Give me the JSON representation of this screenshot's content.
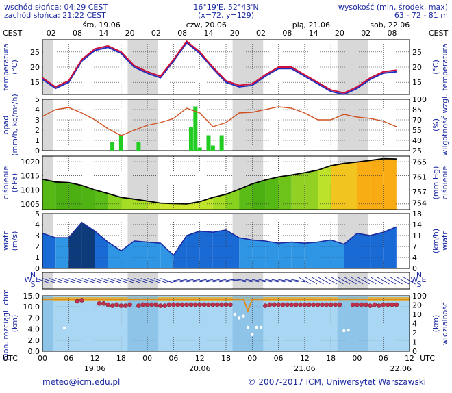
{
  "header": {
    "sunrise": "wschód słońca: 04:29 CEST",
    "sunset": "zachód słońca: 21:22 CEST",
    "coords": "16°19'E, 52°43'N",
    "grid": "(x=72,  y=129)",
    "alt_label": "wysokość (min, środek, max)",
    "alt_values": "63 - 72 - 81 m"
  },
  "top_axis": {
    "tz": "CEST",
    "hours": [
      "02",
      "08",
      "14",
      "20",
      "02",
      "08",
      "14",
      "20",
      "02",
      "08",
      "14",
      "20",
      "02",
      "08",
      "14"
    ],
    "days": [
      "śro, 19.06",
      "czw, 20.06",
      "pią, 21.06",
      "sob, 22.06"
    ]
  },
  "bottom_axis": {
    "tz": "UTC",
    "hours": [
      "00",
      "06",
      "12",
      "18",
      "00",
      "06",
      "12",
      "18",
      "00",
      "06",
      "12",
      "18",
      "00",
      "06",
      "12"
    ],
    "dates": [
      "19.06",
      "20.06",
      "21.06",
      "22.06"
    ]
  },
  "panels": {
    "temperature": {
      "left_label": "temperatura\n(°C)",
      "right_label": "(°C)\ntemperatura",
      "ticks": [
        "15",
        "20",
        "25"
      ]
    },
    "precip": {
      "left_label": "opad\n(mm/h, kg/m²/h)",
      "right_label": "(%)\nwilgotność wzgl.",
      "left_ticks": [
        "0",
        "1",
        "2",
        "3",
        "4",
        "5"
      ],
      "right_ticks": [
        "25",
        "40",
        "55",
        "70",
        "85",
        "100"
      ]
    },
    "pressure": {
      "left_label": "ciśnienie\n(hPa)",
      "right_label": "(mm Hg)\nciśnienie",
      "left_ticks": [
        "1005",
        "1010",
        "1015",
        "1020"
      ],
      "right_ticks": [
        "754",
        "757",
        "761",
        "765"
      ]
    },
    "wind": {
      "left_label": "wiatr\n(m/s)",
      "right_label": "(km/h)\nwiatr",
      "left_ticks": [
        "0",
        "1",
        "2",
        "3",
        "4",
        "5"
      ],
      "right_ticks": [
        "0",
        "4",
        "7",
        "11",
        "14",
        "18"
      ]
    },
    "winddir": {
      "left": "N",
      "right": "N",
      "w": "W",
      "e": "E",
      "s": "S"
    },
    "visibility": {
      "left_label": "pion. rozciągł. chm.\n(km)",
      "right_label": "(km)\nwidzialność",
      "left_ticks": [
        "0.0",
        "2.0",
        "4.0",
        "7.0",
        "10.0",
        "15.0"
      ],
      "right_ticks": [
        "0",
        "1",
        "2",
        "4",
        "10",
        "20",
        "100"
      ]
    }
  },
  "footer": {
    "email": "meteo@icm.edu.pl",
    "copyright": "© 2007-2017 ICM, Uniwersytet Warszawski"
  },
  "colors": {
    "temp_line": "#d0103a",
    "temp_min": "#2030c0",
    "humidity": "#d05020",
    "precip": "#22cc22",
    "pressure_line": "#000000",
    "wind_line": "#1c2aa0",
    "frame": "#1c2aa0"
  },
  "chart_data": [
    {
      "type": "line",
      "title": "temperatura",
      "ylim": [
        11,
        29
      ],
      "x_hours_utc": [
        0,
        3,
        6,
        9,
        12,
        15,
        18,
        21,
        24,
        27,
        30,
        33,
        36,
        39,
        42,
        45,
        48,
        51,
        54,
        57,
        60,
        63,
        66,
        69,
        72,
        75,
        78,
        81
      ],
      "series": [
        {
          "name": "max",
          "values": [
            16.5,
            13.5,
            15.5,
            22.5,
            26,
            27,
            25,
            20.5,
            18.5,
            17,
            22.5,
            28.5,
            25,
            20,
            15.5,
            14,
            14.5,
            17.5,
            20,
            20,
            17.5,
            15,
            12.5,
            11.5,
            13.5,
            16.5,
            18.5,
            19
          ]
        },
        {
          "name": "min",
          "values": [
            16,
            13,
            15,
            22,
            25.5,
            26.5,
            24.5,
            20,
            18,
            16.5,
            22,
            28,
            24.5,
            19.5,
            15,
            13.5,
            14,
            17,
            19.5,
            19.5,
            17,
            14.5,
            12,
            11,
            13,
            16,
            18,
            18.5
          ]
        }
      ]
    },
    {
      "type": "bar",
      "title": "opad",
      "ylim": [
        0,
        5
      ],
      "bars": [
        {
          "x": 16,
          "values": [
            0.8
          ]
        },
        {
          "x": 18,
          "values": [
            1.5
          ]
        },
        {
          "x": 22,
          "values": [
            0.8
          ]
        },
        {
          "x": 34,
          "values": [
            2.3
          ]
        },
        {
          "x": 35,
          "values": [
            4.3
          ]
        },
        {
          "x": 36,
          "values": [
            0.3
          ]
        },
        {
          "x": 38,
          "values": [
            1.5
          ]
        },
        {
          "x": 39,
          "values": [
            0.5
          ]
        },
        {
          "x": 41,
          "values": [
            1.5
          ]
        }
      ],
      "humidity_series": {
        "name": "wilgotność",
        "x_hours_utc": [
          0,
          3,
          6,
          9,
          12,
          15,
          18,
          21,
          24,
          27,
          30,
          33,
          36,
          39,
          42,
          45,
          48,
          51,
          54,
          57,
          60,
          63,
          66,
          69,
          72,
          75,
          78,
          81
        ],
        "values": [
          75,
          85,
          88,
          80,
          70,
          57,
          47,
          55,
          62,
          66,
          72,
          87,
          80,
          60,
          66,
          80,
          81,
          85,
          89,
          87,
          80,
          70,
          70,
          78,
          74,
          72,
          68,
          60
        ]
      }
    },
    {
      "type": "line",
      "title": "ciśnienie",
      "ylim": [
        1003,
        1022
      ],
      "x_hours_utc": [
        0,
        3,
        6,
        9,
        12,
        15,
        18,
        21,
        24,
        27,
        30,
        33,
        36,
        39,
        42,
        45,
        48,
        51,
        54,
        57,
        60,
        63,
        66,
        69,
        72,
        75,
        78,
        81
      ],
      "values": [
        1013.8,
        1012.8,
        1012.6,
        1011.6,
        1010,
        1008.7,
        1007.3,
        1006.7,
        1006,
        1005.3,
        1005.1,
        1005,
        1005.8,
        1007.3,
        1008.4,
        1010.2,
        1012.1,
        1013.5,
        1014.6,
        1015.3,
        1016.1,
        1017,
        1018.6,
        1019.4,
        1019.9,
        1020.5,
        1021.1,
        1021
      ]
    },
    {
      "type": "line",
      "title": "wiatr",
      "ylim": [
        0,
        5
      ],
      "x_hours_utc": [
        0,
        3,
        6,
        9,
        12,
        15,
        18,
        21,
        24,
        27,
        30,
        33,
        36,
        39,
        42,
        45,
        48,
        51,
        54,
        57,
        60,
        63,
        66,
        69,
        72,
        75,
        78,
        81
      ],
      "values": [
        3.2,
        2.8,
        2.8,
        4.2,
        3.4,
        2.4,
        1.6,
        2.5,
        2.4,
        2.3,
        1.2,
        3,
        3.4,
        3.3,
        3.5,
        2.8,
        2.6,
        2.5,
        2.3,
        2.4,
        2.3,
        2.4,
        2.6,
        2.2,
        3.2,
        3,
        3.3,
        3.8
      ]
    },
    {
      "type": "scatter",
      "title": "widzialność",
      "ylim": [
        0,
        15
      ],
      "series": [
        {
          "name": "chmury",
          "x": [
            5,
            8,
            9,
            13,
            14,
            15,
            16,
            17,
            18,
            19,
            20,
            22,
            23,
            24,
            25,
            26,
            27,
            28,
            29,
            30,
            31,
            32,
            33,
            34,
            35,
            36,
            37,
            38,
            39,
            40,
            41,
            42,
            43,
            44,
            45,
            46,
            47,
            48,
            49,
            50,
            51,
            52,
            53,
            54,
            55,
            56,
            57,
            58,
            59,
            60,
            61,
            62,
            63,
            64,
            65,
            66,
            67,
            68,
            69,
            70,
            71,
            72,
            73,
            74,
            75,
            76,
            77,
            78,
            79,
            80,
            81
          ],
          "values": [
            4.3,
            12.5,
            13,
            11.5,
            11.5,
            11,
            10.5,
            11,
            10.5,
            10.5,
            11,
            10.5,
            11,
            11,
            11,
            11,
            10.5,
            10.5,
            11,
            11,
            11,
            11,
            11,
            11,
            11,
            11,
            11,
            11,
            11,
            11,
            11,
            11,
            11,
            8,
            7,
            7.5,
            4.5,
            3,
            4.5,
            4.5,
            10.5,
            11,
            11,
            11,
            11,
            11,
            11,
            11,
            11,
            11,
            11,
            11,
            11,
            11,
            11,
            11,
            11,
            11,
            3.7,
            3.8,
            11,
            11,
            11,
            11,
            10.5,
            11,
            10.5,
            11,
            11,
            11,
            11
          ]
        }
      ]
    }
  ]
}
